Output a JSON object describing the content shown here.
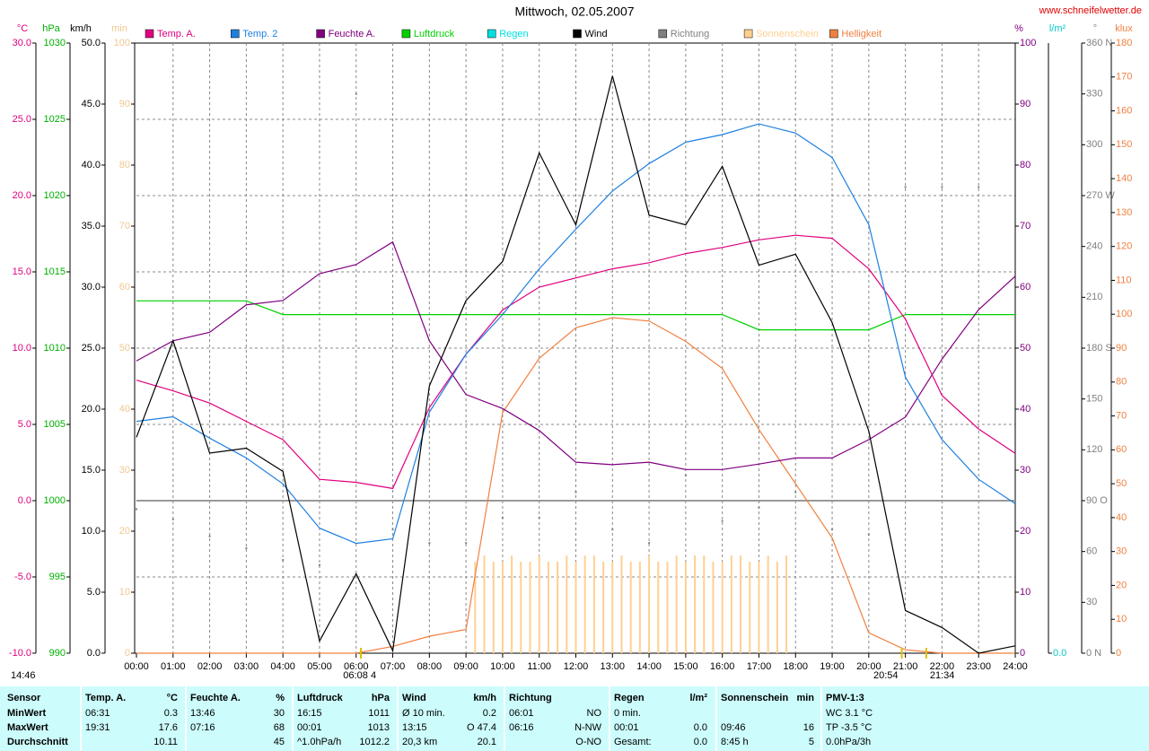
{
  "site": "www.schneifelwetter.de",
  "chart_data": {
    "type": "line",
    "title": "Mittwoch, 02.05.2007",
    "xlim": [
      0,
      24
    ],
    "xticks": [
      {
        "value": 0,
        "label": "00:00"
      },
      {
        "value": 1,
        "label": "01:00"
      },
      {
        "value": 2,
        "label": "02:00"
      },
      {
        "value": 3,
        "label": "03:00"
      },
      {
        "value": 4,
        "label": "04:00"
      },
      {
        "value": 5,
        "label": "05:00"
      },
      {
        "value": 6,
        "label": "06:00"
      },
      {
        "value": 7,
        "label": "07:00"
      },
      {
        "value": 8,
        "label": "08:00"
      },
      {
        "value": 9,
        "label": "09:00"
      },
      {
        "value": 10,
        "label": "10:00"
      },
      {
        "value": 11,
        "label": "11:00"
      },
      {
        "value": 12,
        "label": "12:00"
      },
      {
        "value": 13,
        "label": "13:00"
      },
      {
        "value": 14,
        "label": "14:00"
      },
      {
        "value": 15,
        "label": "15:00"
      },
      {
        "value": 16,
        "label": "16:00"
      },
      {
        "value": 17,
        "label": "17:00"
      },
      {
        "value": 18,
        "label": "18:00"
      },
      {
        "value": 19,
        "label": "19:00"
      },
      {
        "value": 20,
        "label": "20:00"
      },
      {
        "value": 21,
        "label": "21:00"
      },
      {
        "value": 22,
        "label": "22:00"
      },
      {
        "value": 23,
        "label": "23:00"
      },
      {
        "value": 24,
        "label": "24:00"
      }
    ],
    "grid": true,
    "reference_line": {
      "axis": "temp",
      "value": 0
    },
    "axes": {
      "temp": {
        "label": "°C",
        "color": "#e0007f",
        "side": "left",
        "lim": [
          -10,
          30
        ],
        "ticks": [
          {
            "value": -10,
            "label": "-10.0"
          },
          {
            "value": -5,
            "label": "-5.0"
          },
          {
            "value": 0,
            "label": "0.0"
          },
          {
            "value": 5,
            "label": "5.0"
          },
          {
            "value": 10,
            "label": "10.0"
          },
          {
            "value": 15,
            "label": "15.0"
          },
          {
            "value": 20,
            "label": "20.0"
          },
          {
            "value": 25,
            "label": "25.0"
          },
          {
            "value": 30,
            "label": "30.0"
          }
        ]
      },
      "hpa": {
        "label": "hPa",
        "color": "#00b000",
        "side": "left",
        "lim": [
          990,
          1030
        ],
        "ticks": [
          990,
          995,
          1000,
          1005,
          1010,
          1015,
          1020,
          1025,
          1030
        ]
      },
      "kmh": {
        "label": "km/h",
        "color": "#000000",
        "side": "left",
        "lim": [
          0,
          50
        ],
        "ticks": [
          {
            "value": 0,
            "label": "0.0"
          },
          {
            "value": 5,
            "label": "5.0"
          },
          {
            "value": 10,
            "label": "10.0"
          },
          {
            "value": 15,
            "label": "15.0"
          },
          {
            "value": 20,
            "label": "20.0"
          },
          {
            "value": 25,
            "label": "25.0"
          },
          {
            "value": 30,
            "label": "30.0"
          },
          {
            "value": 35,
            "label": "35.0"
          },
          {
            "value": 40,
            "label": "40.0"
          },
          {
            "value": 45,
            "label": "45.0"
          },
          {
            "value": 50,
            "label": "50.0"
          }
        ]
      },
      "min": {
        "label": "min",
        "color": "#f0c890",
        "side": "left",
        "lim": [
          0,
          100
        ],
        "ticks": [
          0,
          10,
          20,
          30,
          40,
          50,
          60,
          70,
          80,
          90,
          100
        ]
      },
      "pct": {
        "label": "%",
        "color": "#800080",
        "side": "right",
        "lim": [
          0,
          100
        ],
        "ticks": [
          0,
          10,
          20,
          30,
          40,
          50,
          60,
          70,
          80,
          90,
          100
        ]
      },
      "rain": {
        "label": "l/m²",
        "color": "#00c8c8",
        "side": "right",
        "ticks": [
          {
            "value": 0,
            "label": "0.0"
          }
        ]
      },
      "dir": {
        "label": "°",
        "color": "#808080",
        "side": "right",
        "lim": [
          0,
          360
        ],
        "ticks": [
          {
            "value": 0,
            "label": "0 N"
          },
          30,
          60,
          {
            "value": 90,
            "label": "90 O"
          },
          120,
          150,
          {
            "value": 180,
            "label": "180 S"
          },
          210,
          240,
          {
            "value": 270,
            "label": "270 W"
          },
          300,
          330,
          {
            "value": 360,
            "label": "360 N"
          }
        ]
      },
      "klux": {
        "label": "klux",
        "color": "#f08040",
        "side": "right",
        "lim": [
          0,
          180
        ],
        "ticks": [
          0,
          10,
          20,
          30,
          40,
          50,
          60,
          70,
          80,
          90,
          100,
          110,
          120,
          130,
          140,
          150,
          160,
          170,
          180
        ]
      }
    },
    "x": [
      0,
      1,
      2,
      3,
      4,
      5,
      6,
      7,
      8,
      9,
      10,
      11,
      12,
      13,
      14,
      15,
      16,
      17,
      18,
      19,
      20,
      21,
      22,
      23,
      24
    ],
    "series": [
      {
        "name": "Temp. A.",
        "color": "#e0007f",
        "axis": "temp",
        "style": "line",
        "values": [
          7.9,
          7.2,
          6.4,
          5.2,
          4.0,
          1.4,
          1.2,
          0.8,
          6.1,
          9.6,
          12.5,
          14.0,
          14.6,
          15.2,
          15.6,
          16.2,
          16.6,
          17.1,
          17.4,
          17.2,
          15.2,
          11.9,
          6.9,
          4.7,
          3.1
        ]
      },
      {
        "name": "Temp. 2",
        "color": "#1e7fe0",
        "axis": "temp",
        "style": "line",
        "values": [
          5.2,
          5.5,
          4.1,
          2.8,
          1.1,
          -1.8,
          -2.8,
          -2.5,
          5.8,
          9.6,
          12.2,
          15.2,
          17.8,
          20.3,
          22.1,
          23.5,
          24.0,
          24.7,
          24.1,
          22.5,
          18.1,
          8.1,
          4.0,
          1.4,
          -0.2
        ]
      },
      {
        "name": "Feuchte A.",
        "color": "#800080",
        "axis": "pct",
        "style": "line",
        "values": [
          47.9,
          51.2,
          52.6,
          57.1,
          57.8,
          62.2,
          63.7,
          67.4,
          51.2,
          42.4,
          40.1,
          36.5,
          31.3,
          30.9,
          31.3,
          30.1,
          30.1,
          31.0,
          32.0,
          32.0,
          35.0,
          38.7,
          48.2,
          56.3,
          61.8
        ]
      },
      {
        "name": "Luftdruck",
        "color": "#00d000",
        "axis": "hpa",
        "style": "line",
        "values": [
          1013.1,
          1013.1,
          1013.1,
          1013.1,
          1012.2,
          1012.2,
          1012.2,
          1012.2,
          1012.2,
          1012.2,
          1012.2,
          1012.2,
          1012.2,
          1012.2,
          1012.2,
          1012.2,
          1012.2,
          1011.2,
          1011.2,
          1011.2,
          1011.2,
          1012.2,
          1012.2,
          1012.2,
          1012.2
        ]
      },
      {
        "name": "Regen",
        "color": "#00e0e0",
        "axis": "rain",
        "style": "none"
      },
      {
        "name": "Wind",
        "color": "#000000",
        "axis": "kmh",
        "style": "line",
        "values": [
          17.7,
          25.6,
          16.4,
          16.8,
          14.9,
          1.0,
          6.5,
          0.2,
          21.9,
          28.9,
          32.1,
          41.0,
          35.1,
          47.3,
          35.9,
          35.1,
          39.9,
          31.8,
          32.7,
          27.1,
          18.2,
          3.5,
          2.1,
          0,
          0.6
        ]
      },
      {
        "name": "Richtung",
        "color": "#808080",
        "axis": "dir",
        "style": "dots",
        "values": [
          85,
          79,
          69,
          62,
          55,
          52,
          330,
          73,
          65,
          65,
          80,
          80,
          95,
          73,
          65,
          105,
          78,
          86,
          95,
          73,
          70,
          275,
          275,
          275,
          275
        ]
      },
      {
        "name": "Sonnenschein",
        "color": "#ffd090",
        "axis": "min",
        "style": "bars",
        "x": [
          9.25,
          9.5,
          9.75,
          10,
          10.25,
          10.5,
          10.75,
          11,
          11.25,
          11.5,
          11.75,
          12,
          12.25,
          12.5,
          12.75,
          13,
          13.25,
          13.5,
          13.75,
          14,
          14.25,
          14.5,
          14.75,
          15,
          15.25,
          15.5,
          15.75,
          16,
          16.25,
          16.5,
          16.75,
          17,
          17.25,
          17.5,
          17.75
        ],
        "values": [
          15,
          16,
          15,
          15,
          16,
          15,
          15,
          16,
          15,
          15,
          16,
          15,
          16,
          16,
          15,
          15,
          16,
          15,
          15,
          16,
          15,
          15,
          16,
          15,
          16,
          16,
          15,
          15,
          16,
          16,
          15,
          15,
          16,
          15,
          16
        ]
      },
      {
        "name": "Helligkeit",
        "color": "#f08040",
        "axis": "klux",
        "style": "line",
        "values": [
          0,
          0,
          0,
          0,
          0,
          0,
          0,
          2,
          5,
          7,
          71,
          87,
          96,
          99,
          98,
          92,
          84,
          66,
          50,
          34,
          6,
          1,
          0,
          0,
          0
        ]
      }
    ],
    "annotations": [
      {
        "text": "14:46"
      },
      {
        "text": "06:08",
        "x": 6.13
      },
      {
        "text": "4",
        "x": 6.13
      },
      {
        "text": "20:54",
        "x": 20.9
      },
      {
        "text": "21:34",
        "x": 21.57
      }
    ]
  },
  "table": {
    "header": [
      [
        "Sensor"
      ],
      [
        "Temp. A.",
        "°C"
      ],
      [
        "Feuchte A.",
        "%"
      ],
      [
        "Luftdruck",
        "hPa"
      ],
      [
        "Wind",
        "km/h"
      ],
      [
        "Richtung"
      ],
      [
        "Regen",
        "l/m²"
      ],
      [
        "Sonnenschein",
        "min"
      ],
      [
        "PMV-1:3"
      ]
    ],
    "rows": [
      [
        [
          "MinWert"
        ],
        [
          "06:31",
          "0.3"
        ],
        [
          "13:46",
          "30"
        ],
        [
          "16:15",
          "1011"
        ],
        [
          "Ø 10 min.",
          "0.2"
        ],
        [
          "06:01",
          "NO"
        ],
        [
          "0 min."
        ],
        [],
        [
          "WC 3.1 °C"
        ]
      ],
      [
        [
          "MaxWert"
        ],
        [
          "19:31",
          "17.6"
        ],
        [
          "07:16",
          "68"
        ],
        [
          "00:01",
          "1013"
        ],
        [
          "13:15",
          "O 47.4"
        ],
        [
          "06:16",
          "N-NW"
        ],
        [
          "00:01",
          "0.0"
        ],
        [
          "09:46",
          "16"
        ],
        [
          "TP -3.5 °C"
        ]
      ],
      [
        [
          "Durchschnitt"
        ],
        [
          null,
          "10.11"
        ],
        [
          null,
          "45"
        ],
        [
          "^1.0hPa/h",
          "1012.2"
        ],
        [
          "20,3 km",
          "20.1"
        ],
        [
          null,
          "O-NO"
        ],
        [
          "Gesamt:",
          "0.0"
        ],
        [
          "8:45 h",
          "5"
        ],
        [
          "0.0hPa/3h"
        ]
      ]
    ]
  }
}
